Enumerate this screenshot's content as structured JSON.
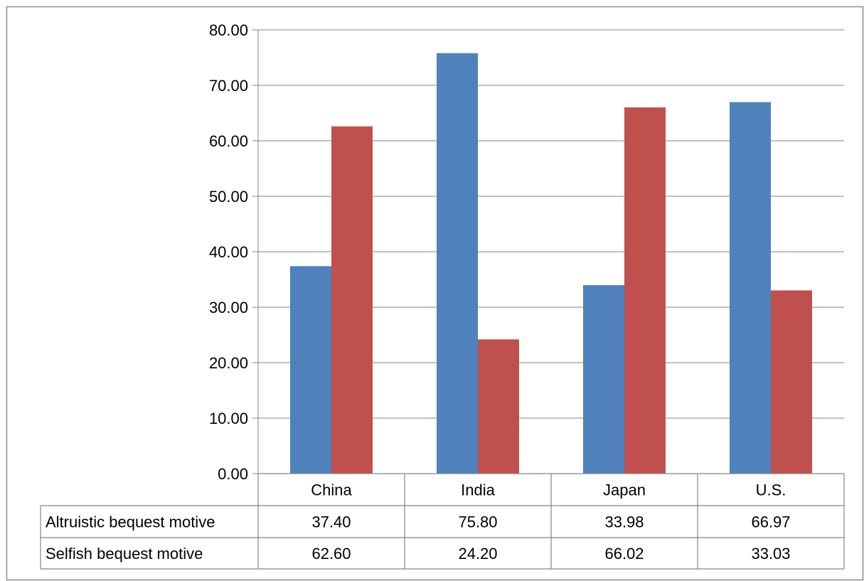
{
  "chart_data": {
    "type": "bar",
    "title": "",
    "xlabel": "",
    "ylabel": "",
    "categories": [
      "China",
      "India",
      "Japan",
      "U.S."
    ],
    "series": [
      {
        "name": "Altruistic bequest motive",
        "values": [
          37.4,
          75.8,
          33.98,
          66.97
        ],
        "color": "#4F81BD"
      },
      {
        "name": "Selfish bequest motive",
        "values": [
          62.6,
          24.2,
          66.02,
          33.03
        ],
        "color": "#C0504D"
      }
    ],
    "ylim": [
      0,
      80
    ],
    "yticks": [
      "0.00",
      "10.00",
      "20.00",
      "30.00",
      "40.00",
      "50.00",
      "60.00",
      "70.00",
      "80.00"
    ],
    "grid": true,
    "legend": "data-table",
    "data_table": {
      "rows": [
        {
          "label": "Altruistic bequest motive",
          "cells": [
            "37.40",
            "75.80",
            "33.98",
            "66.97"
          ]
        },
        {
          "label": "Selfish bequest motive",
          "cells": [
            "62.60",
            "24.20",
            "66.02",
            "33.03"
          ]
        }
      ]
    }
  }
}
